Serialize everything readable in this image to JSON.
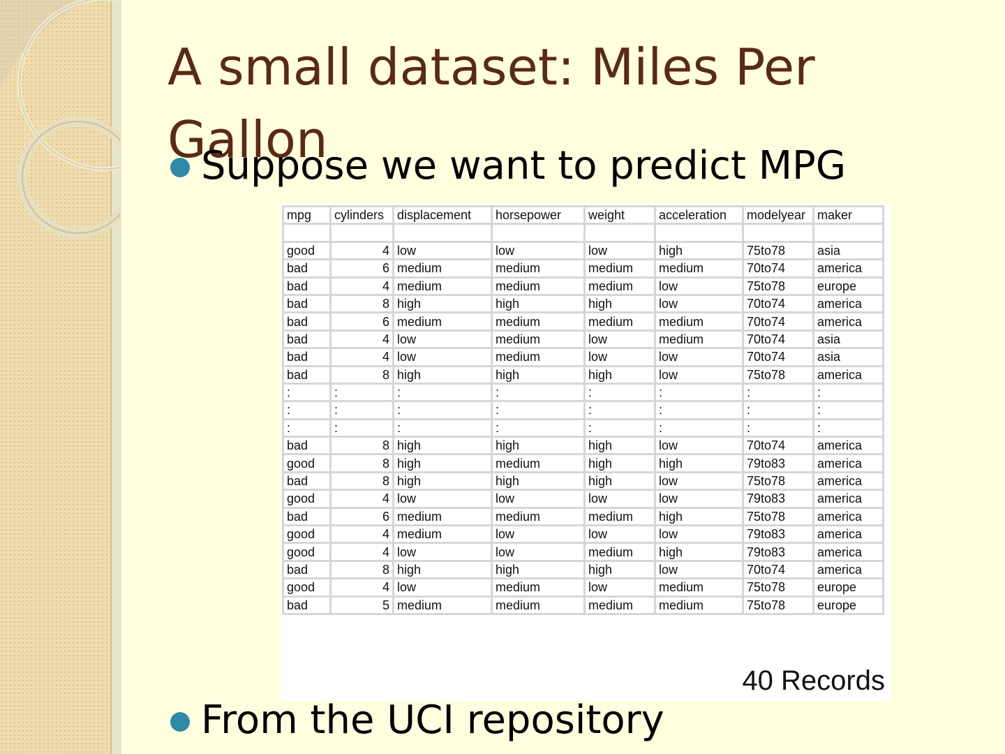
{
  "title": "A small dataset: Miles Per Gallon",
  "bullets": [
    "Suppose we want to predict MPG",
    "From the UCI repository"
  ],
  "table": {
    "columns": [
      "mpg",
      "cylinders",
      "displacement",
      "horsepower",
      "weight",
      "acceleration",
      "modelyear",
      "maker"
    ],
    "rows": [
      [
        "",
        "",
        "",
        "",
        "",
        "",
        "",
        ""
      ],
      [
        "good",
        "4",
        "low",
        "low",
        "low",
        "high",
        "75to78",
        "asia"
      ],
      [
        "bad",
        "6",
        "medium",
        "medium",
        "medium",
        "medium",
        "70to74",
        "america"
      ],
      [
        "bad",
        "4",
        "medium",
        "medium",
        "medium",
        "low",
        "75to78",
        "europe"
      ],
      [
        "bad",
        "8",
        "high",
        "high",
        "high",
        "low",
        "70to74",
        "america"
      ],
      [
        "bad",
        "6",
        "medium",
        "medium",
        "medium",
        "medium",
        "70to74",
        "america"
      ],
      [
        "bad",
        "4",
        "low",
        "medium",
        "low",
        "medium",
        "70to74",
        "asia"
      ],
      [
        "bad",
        "4",
        "low",
        "medium",
        "low",
        "low",
        "70to74",
        "asia"
      ],
      [
        "bad",
        "8",
        "high",
        "high",
        "high",
        "low",
        "75to78",
        "america"
      ],
      [
        ":",
        ":",
        ":",
        ":",
        ":",
        ":",
        ":",
        ":"
      ],
      [
        ":",
        ":",
        ":",
        ":",
        ":",
        ":",
        ":",
        ":"
      ],
      [
        ":",
        ":",
        ":",
        ":",
        ":",
        ":",
        ":",
        ":"
      ],
      [
        "bad",
        "8",
        "high",
        "high",
        "high",
        "low",
        "70to74",
        "america"
      ],
      [
        "good",
        "8",
        "high",
        "medium",
        "high",
        "high",
        "79to83",
        "america"
      ],
      [
        "bad",
        "8",
        "high",
        "high",
        "high",
        "low",
        "75to78",
        "america"
      ],
      [
        "good",
        "4",
        "low",
        "low",
        "low",
        "low",
        "79to83",
        "america"
      ],
      [
        "bad",
        "6",
        "medium",
        "medium",
        "medium",
        "high",
        "75to78",
        "america"
      ],
      [
        "good",
        "4",
        "medium",
        "low",
        "low",
        "low",
        "79to83",
        "america"
      ],
      [
        "good",
        "4",
        "low",
        "low",
        "medium",
        "high",
        "79to83",
        "america"
      ],
      [
        "bad",
        "8",
        "high",
        "high",
        "high",
        "low",
        "70to74",
        "america"
      ],
      [
        "good",
        "4",
        "low",
        "medium",
        "low",
        "medium",
        "75to78",
        "europe"
      ],
      [
        "bad",
        "5",
        "medium",
        "medium",
        "medium",
        "medium",
        "75to78",
        "europe"
      ]
    ],
    "footer": "40 Records"
  },
  "colors": {
    "background": "#ffffe0",
    "title": "#5a2a14",
    "bullet": "#2f8aa8",
    "strip": "#f0dcae"
  },
  "icons": [
    "bullet-dot-icon",
    "decorative-rings-icon"
  ]
}
